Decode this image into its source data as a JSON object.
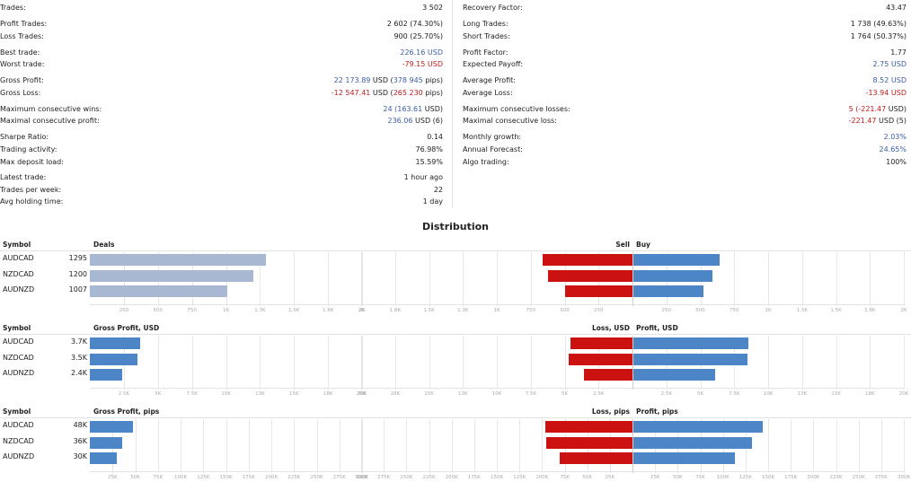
{
  "stats": {
    "left": [
      {
        "label": "Trades:",
        "value": "3 502"
      },
      {
        "label": "Profit Trades:",
        "value": "2 602 (74.30%)"
      },
      {
        "label": "Loss Trades:",
        "value": "900 (25.70%)"
      },
      {
        "label": "Best trade:",
        "value": "226.16 USD",
        "color": "blue"
      },
      {
        "label": "Worst trade:",
        "value": "-79.15 USD",
        "color": "red"
      },
      {
        "label": "Gross Profit:",
        "value_parts": [
          "22 173.89",
          "USD (",
          "378 945",
          " pips)"
        ],
        "color": "blue"
      },
      {
        "label": "Gross Loss:",
        "value_parts": [
          "-12 547.41",
          "USD (",
          "265 230",
          " pips)"
        ],
        "color": "red"
      },
      {
        "label": "Maximum consecutive wins:",
        "value_parts": [
          "24 (",
          "163.61",
          " USD)"
        ],
        "color": "blue"
      },
      {
        "label": "Maximal consecutive profit:",
        "value_parts": [
          "236.06",
          " USD (6)"
        ],
        "color": "blue"
      },
      {
        "label": "Sharpe Ratio:",
        "value": "0.14"
      },
      {
        "label": "Trading activity:",
        "value": "76.98%"
      },
      {
        "label": "Max deposit load:",
        "value": "15.59%"
      },
      {
        "label": "Latest trade:",
        "value": "1 hour ago"
      },
      {
        "label": "Trades per week:",
        "value": "22"
      },
      {
        "label": "Avg holding time:",
        "value": "1 day"
      }
    ],
    "right": [
      {
        "label": "Recovery Factor:",
        "value": "43.47"
      },
      {
        "label": "Long Trades:",
        "value": "1 738 (49.63%)"
      },
      {
        "label": "Short Trades:",
        "value": "1 764 (50.37%)"
      },
      {
        "label": "Profit Factor:",
        "value": "1.77"
      },
      {
        "label": "Expected Payoff:",
        "value": "2.75 USD",
        "color": "blue"
      },
      {
        "label": "Average Profit:",
        "value": "8.52 USD",
        "color": "blue"
      },
      {
        "label": "Average Loss:",
        "value": "-13.94 USD",
        "color": "red"
      },
      {
        "label": "Maximum consecutive losses:",
        "value_parts": [
          "5 (",
          "-221.47",
          " USD)"
        ],
        "color": "red"
      },
      {
        "label": "Maximal consecutive loss:",
        "value_parts": [
          "-221.47",
          " USD (5)"
        ],
        "color": "red"
      },
      {
        "label": "Monthly growth:",
        "value": "2.03%",
        "color": "blue"
      },
      {
        "label": "Annual Forecast:",
        "value": "24.65%",
        "color": "blue"
      },
      {
        "label": "Algo trading:",
        "value": "100%"
      }
    ]
  },
  "distribution": {
    "title": "Distribution",
    "symbol_header": "Symbol",
    "symbols": [
      "AUDCAD",
      "NZDCAD",
      "AUDNZD"
    ],
    "colors": {
      "deals": "#a8b8d2",
      "profit": "#4c86c6",
      "loss": "#cc1111"
    },
    "panels": [
      {
        "left_header": "Deals",
        "left_labels": [
          "1295",
          "1200",
          "1007"
        ],
        "left_values": [
          1295,
          1200,
          1007
        ],
        "left_max": 2000,
        "left_color": "deals",
        "left_ticks": [
          "250",
          "500",
          "750",
          "1K",
          "1.3K",
          "1.5K",
          "1.8K",
          "2K"
        ],
        "right_header_left": "Sell",
        "right_header_right": "Buy",
        "neg": [
          660,
          620,
          500
        ],
        "pos": [
          635,
          580,
          515
        ],
        "half_max": 2000,
        "neg_ticks": [
          "2K",
          "1.8K",
          "1.5K",
          "1.3K",
          "1K",
          "750",
          "500",
          "250"
        ],
        "pos_ticks": [
          "250",
          "500",
          "750",
          "1K",
          "1.3K",
          "1.5K",
          "1.8K",
          "2K"
        ]
      },
      {
        "left_header": "Gross Profit, USD",
        "left_labels": [
          "3.7K",
          "3.5K",
          "2.4K"
        ],
        "left_values": [
          3700,
          3500,
          2400
        ],
        "left_max": 20000,
        "left_color": "profit",
        "left_ticks": [
          "2.5K",
          "5K",
          "7.5K",
          "10K",
          "13K",
          "15K",
          "18K",
          "20K"
        ],
        "right_header_left": "Loss, USD",
        "right_header_right": "Profit, USD",
        "neg": [
          4600,
          4700,
          3600
        ],
        "pos": [
          8500,
          8400,
          6000
        ],
        "half_max": 20000,
        "neg_ticks": [
          "20K",
          "18K",
          "15K",
          "13K",
          "10K",
          "7.5K",
          "5K",
          "2.5K"
        ],
        "pos_ticks": [
          "2.5K",
          "5K",
          "7.5K",
          "10K",
          "13K",
          "15K",
          "18K",
          "20K"
        ]
      },
      {
        "left_header": "Gross Profit, pips",
        "left_labels": [
          "48K",
          "36K",
          "30K"
        ],
        "left_values": [
          48000,
          36000,
          30000
        ],
        "left_max": 300000,
        "left_color": "profit",
        "left_ticks": [
          "25K",
          "50K",
          "75K",
          "100K",
          "125K",
          "150K",
          "175K",
          "200K",
          "225K",
          "250K",
          "275K",
          "300K"
        ],
        "right_header_left": "Loss, pips",
        "right_header_right": "Profit, pips",
        "neg": [
          96000,
          95000,
          80000
        ],
        "pos": [
          143000,
          131000,
          112000
        ],
        "half_max": 300000,
        "neg_ticks": [
          "300K",
          "275K",
          "250K",
          "225K",
          "200K",
          "175K",
          "150K",
          "125K",
          "100K",
          "75K",
          "50K",
          "25K"
        ],
        "pos_ticks": [
          "25K",
          "50K",
          "75K",
          "100K",
          "125K",
          "150K",
          "175K",
          "200K",
          "225K",
          "250K",
          "275K",
          "300K"
        ]
      }
    ]
  }
}
